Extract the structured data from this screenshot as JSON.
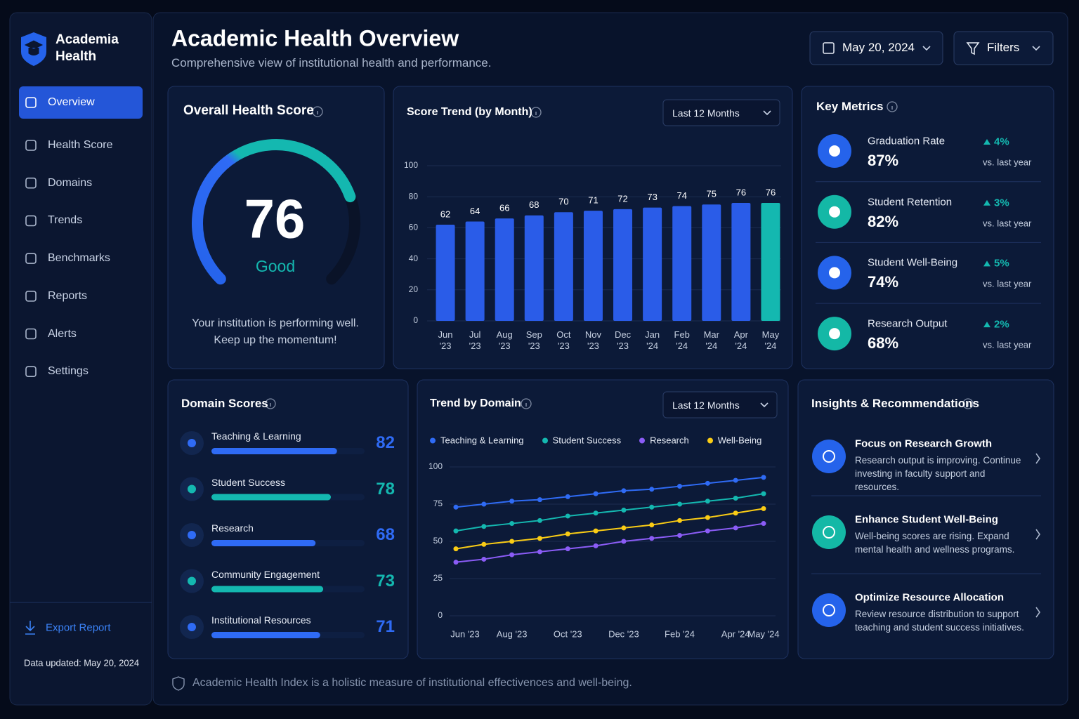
{
  "sidebar": {
    "brand": "Academia Health",
    "nav": [
      "Overview",
      "Health Score",
      "Domains",
      "Trends",
      "Benchmarks",
      "Reports",
      "Alerts",
      "Settings"
    ],
    "export": "Export Report",
    "updated": "Data updated: May 20, 2024"
  },
  "header": {
    "title": "Academic Health Overview",
    "subtitle": "Comprehensive view of institutional health and performance.",
    "date": "May 20, 2024",
    "filters": "Filters"
  },
  "health_score": {
    "title": "Overall Health Score",
    "score": 76,
    "scale": [
      0,
      100
    ],
    "status": "Good",
    "message": [
      "Your institution is performing well.",
      "Keep up the momentum!"
    ]
  },
  "chart_data": [
    {
      "type": "bar",
      "title": "Score Trend (by Month)",
      "period": "Last 12 Months",
      "categories": [
        "Jun '23",
        "Jul '23",
        "Aug '23",
        "Sep '23",
        "Oct '23",
        "Nov '23",
        "Dec '23",
        "Jan '24",
        "Feb '24",
        "Mar '24",
        "Apr '24",
        "May '24"
      ],
      "values": [
        62,
        64,
        66,
        68,
        70,
        71,
        72,
        73,
        74,
        75,
        76,
        76
      ],
      "colors": [
        "#2a5ce8",
        "#2a5ce8",
        "#2a5ce8",
        "#2a5ce8",
        "#2a5ce8",
        "#2a5ce8",
        "#2a5ce8",
        "#2a5ce8",
        "#2a5ce8",
        "#2a5ce8",
        "#2a5ce8",
        "#14b8b0"
      ],
      "ylim": [
        0,
        100
      ],
      "yticks": [
        0,
        20,
        40,
        60,
        80,
        100
      ],
      "grid": true
    },
    {
      "type": "line",
      "title": "Trend by Domain",
      "period": "Last 12 Months",
      "categories": [
        "Jun '23",
        null,
        "Aug '23",
        null,
        "Oct '23",
        null,
        "Dec '23",
        null,
        "Feb '24",
        null,
        "Apr '24",
        "May '24"
      ],
      "series": [
        {
          "name": "Teaching & Learning",
          "color": "#2f6bf5",
          "values": [
            73,
            75,
            77,
            78,
            80,
            82,
            84,
            85,
            87,
            89,
            91,
            93
          ]
        },
        {
          "name": "Student Success",
          "color": "#14b8b0",
          "values": [
            57,
            60,
            62,
            64,
            67,
            69,
            71,
            73,
            75,
            77,
            79,
            82
          ]
        },
        {
          "name": "Research",
          "color": "#8b5cf6",
          "values": [
            36,
            38,
            41,
            43,
            45,
            47,
            50,
            52,
            54,
            57,
            59,
            62
          ]
        },
        {
          "name": "Well-Being",
          "color": "#facc15",
          "values": [
            45,
            48,
            50,
            52,
            55,
            57,
            59,
            61,
            64,
            66,
            69,
            72
          ]
        }
      ],
      "ylim": [
        0,
        100
      ],
      "yticks": [
        0,
        25,
        50,
        75,
        100
      ],
      "grid": true
    }
  ],
  "key_metrics": {
    "title": "Key Metrics",
    "items": [
      {
        "label": "Graduation Rate",
        "value": "87%",
        "change": "4%",
        "note": "vs. last year",
        "color": "#2563eb"
      },
      {
        "label": "Student Retention",
        "value": "82%",
        "change": "3%",
        "note": "vs. last year",
        "color": "#14b8a6"
      },
      {
        "label": "Student Well-Being",
        "value": "74%",
        "change": "5%",
        "note": "vs. last year",
        "color": "#2563eb"
      },
      {
        "label": "Research Output",
        "value": "68%",
        "change": "2%",
        "note": "vs. last year",
        "color": "#14b8a6"
      }
    ]
  },
  "domain_scores": {
    "title": "Domain Scores",
    "xlim": [
      0,
      100
    ],
    "items": [
      {
        "label": "Teaching & Learning",
        "value": 82,
        "color": "#2f6bf5"
      },
      {
        "label": "Student Success",
        "value": 78,
        "color": "#14b8b0"
      },
      {
        "label": "Research",
        "value": 68,
        "color": "#2f6bf5"
      },
      {
        "label": "Community Engagement",
        "value": 73,
        "color": "#14b8b0"
      },
      {
        "label": "Institutional Resources",
        "value": 71,
        "color": "#2f6bf5"
      }
    ]
  },
  "insights": {
    "title": "Insights & Recommendations",
    "items": [
      {
        "title": "Focus on Research Growth",
        "text": "Research output is improving. Continue investing in faculty support and resources.",
        "color": "#2563eb"
      },
      {
        "title": "Enhance Student Well-Being",
        "text": "Well-being scores are rising. Expand mental health and wellness programs.",
        "color": "#14b8a6"
      },
      {
        "title": "Optimize Resource Allocation",
        "text": "Review resource distribution to support teaching and student success initiatives.",
        "color": "#2563eb"
      }
    ]
  },
  "footer": "Academic Health Index is a holistic measure of institutional effectivences and well-being."
}
